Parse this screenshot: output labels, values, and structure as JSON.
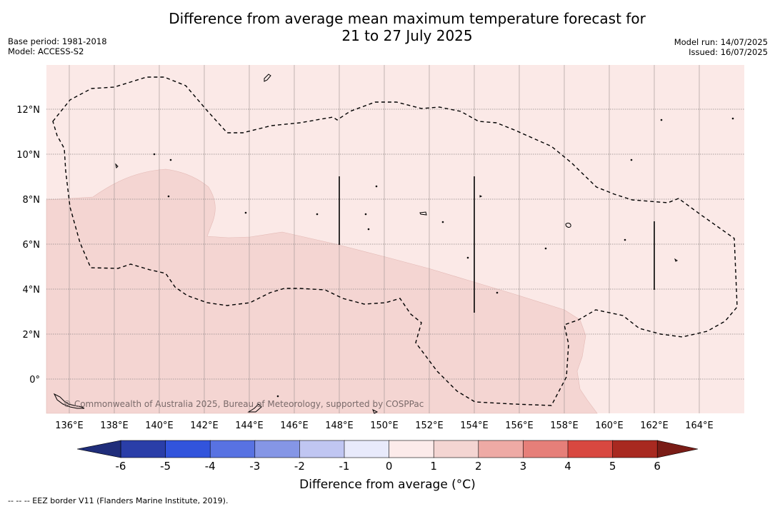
{
  "header": {
    "title_line1": "Difference from average mean maximum temperature forecast for",
    "title_line2": "21 to 27 July 2025",
    "base_period": "Base period: 1981-2018",
    "model": "Model: ACCESS-S2",
    "model_run": "Model run: 14/07/2025",
    "issued": "Issued: 16/07/2025"
  },
  "map": {
    "lon_labels": [
      "136°E",
      "138°E",
      "140°E",
      "142°E",
      "144°E",
      "146°E",
      "148°E",
      "150°E",
      "152°E",
      "154°E",
      "156°E",
      "158°E",
      "160°E",
      "162°E",
      "164°E"
    ],
    "lat_labels": [
      "12°N",
      "10°N",
      "8°N",
      "6°N",
      "4°N",
      "2°N",
      "0°"
    ],
    "copyright": "© Commonwealth of Australia 2025, Bureau of Meteorology, supported by COSPPac",
    "colors": {
      "class_0_1": "#fbe9e7",
      "class_1_2": "#f4d5d2",
      "eez_border": "#000000"
    }
  },
  "colorbar": {
    "ticks": [
      "-6",
      "-5",
      "-4",
      "-3",
      "-2",
      "-1",
      "0",
      "1",
      "2",
      "3",
      "4",
      "5",
      "6"
    ],
    "colors": [
      "#2a3ea8",
      "#3254dc",
      "#5872e2",
      "#8596e6",
      "#c0c6f2",
      "#e8eafb",
      "#fcebea",
      "#f4d5d2",
      "#eeaaa5",
      "#e67f79",
      "#d84840",
      "#a82920"
    ],
    "under_color": "#1f2d7a",
    "over_color": "#7a1c16",
    "label": "Difference from average (°C)"
  },
  "footnote": "--  --  -- EEZ border V11 (Flanders Marine Institute, 2019)."
}
